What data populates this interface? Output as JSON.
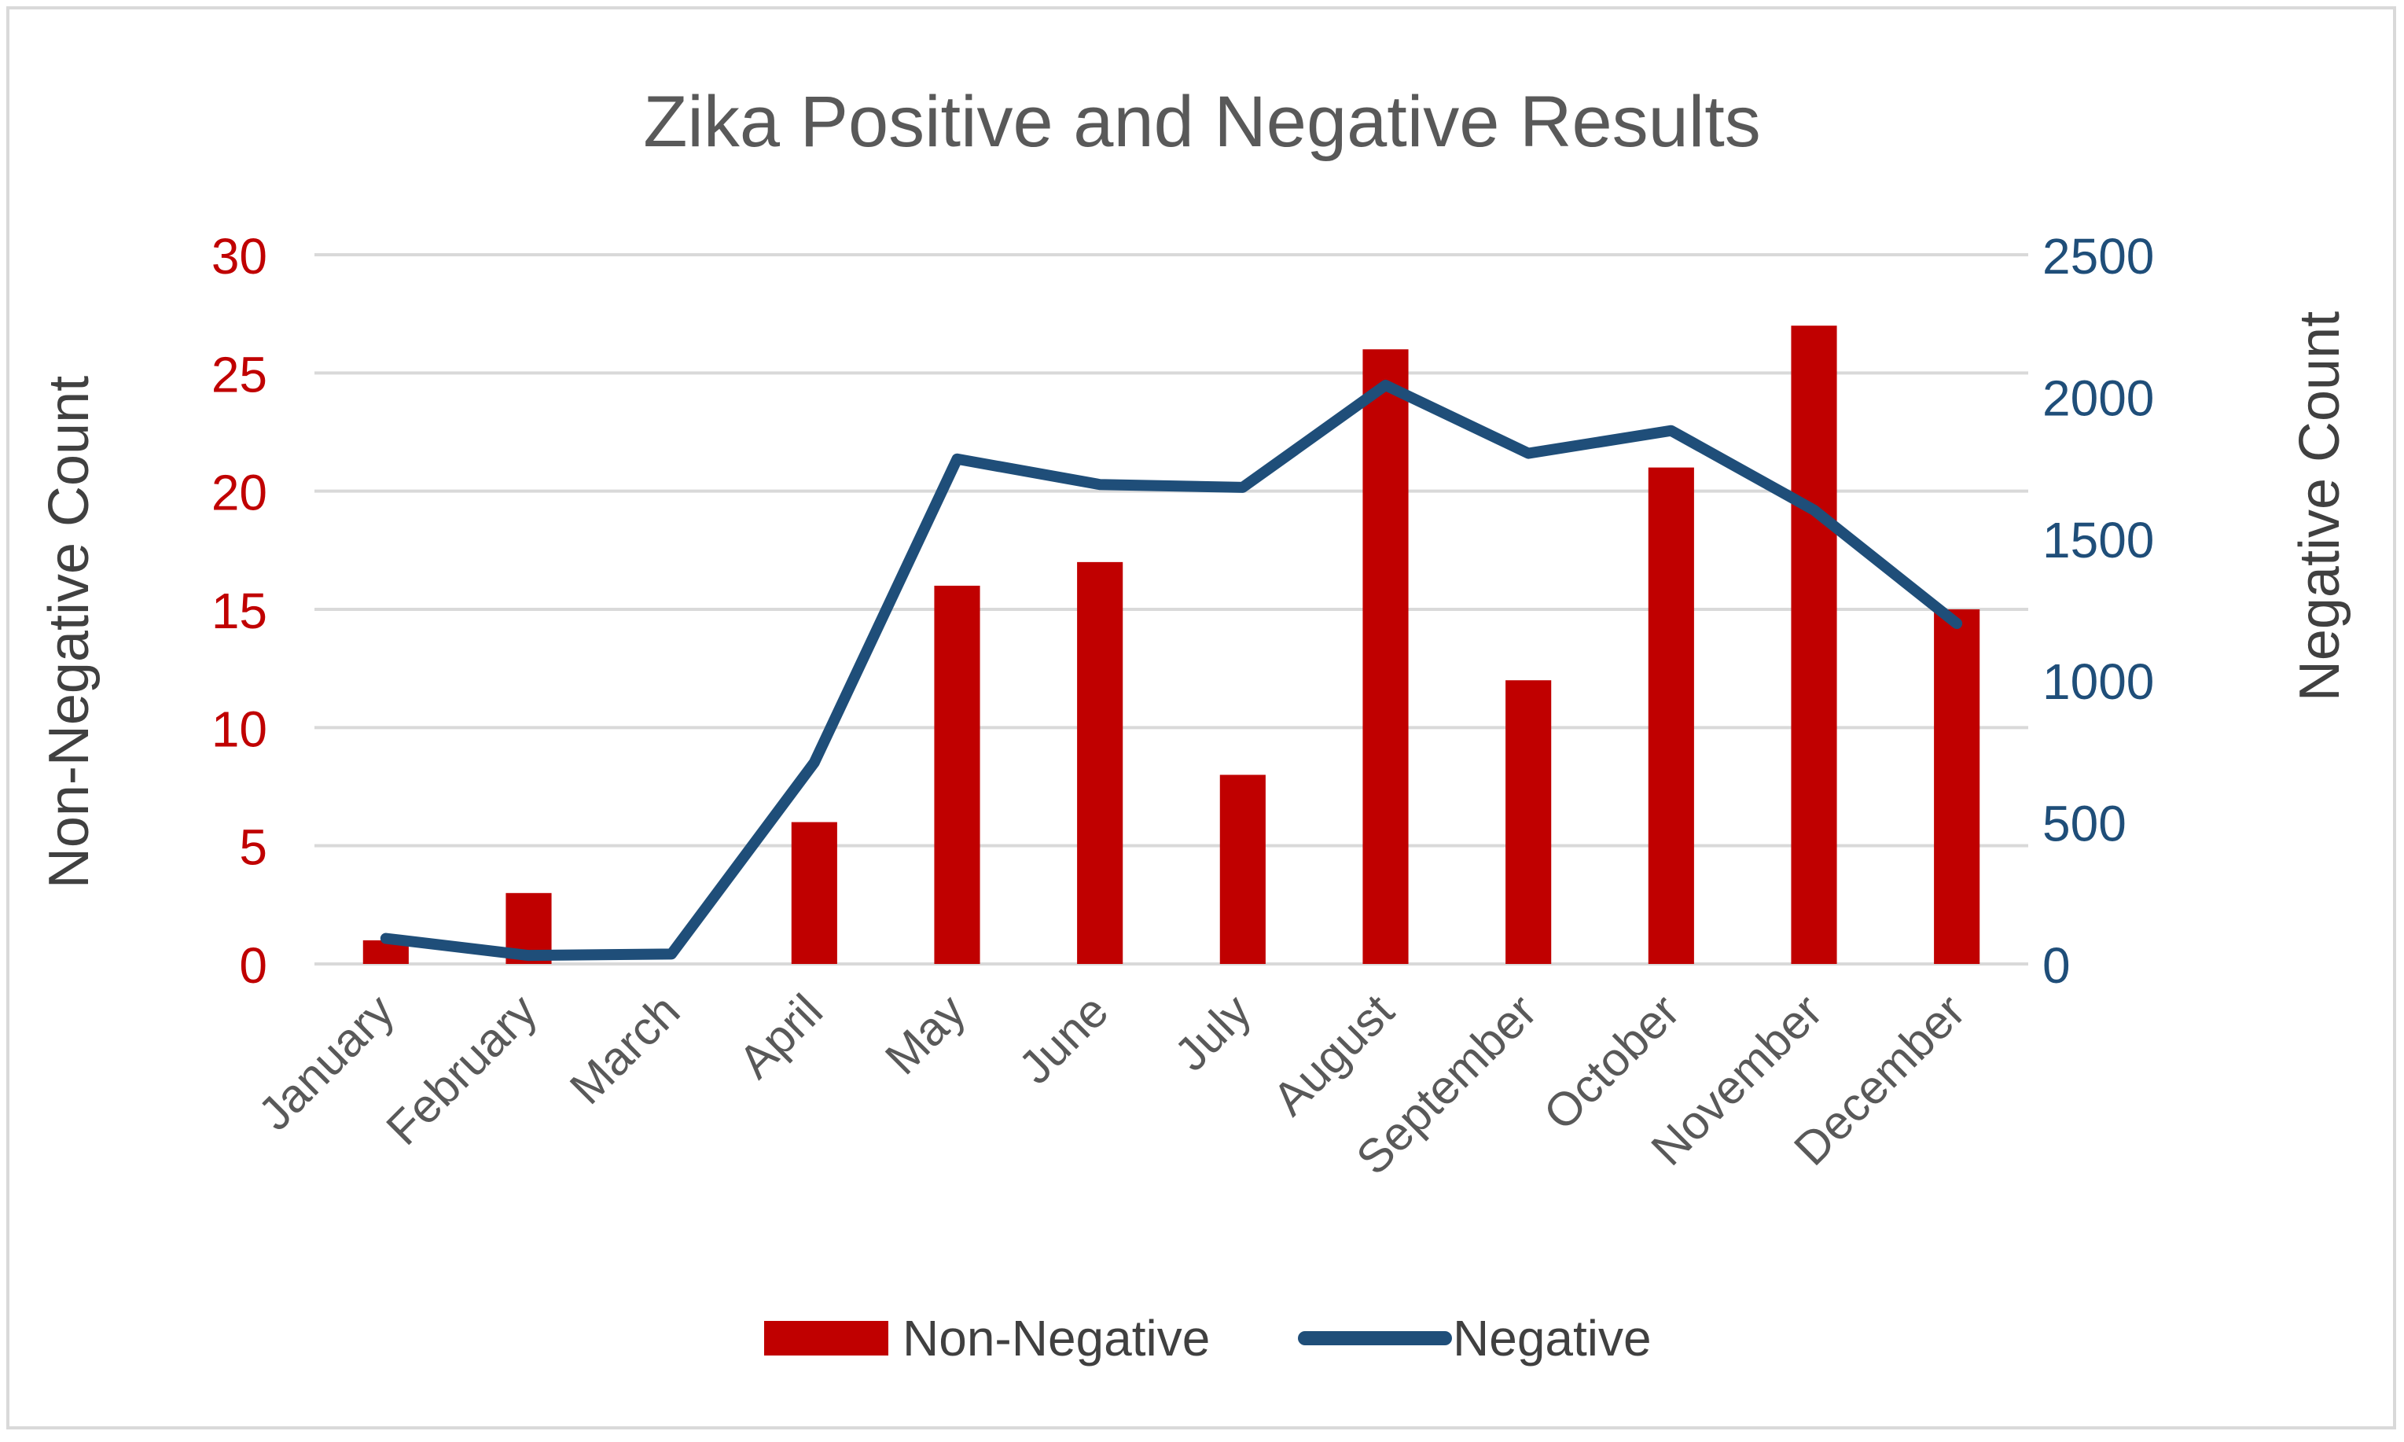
{
  "chart_data": {
    "type": "bar",
    "title": "Zika Positive and Negative Results",
    "xlabel": "",
    "ylabel": "Non-Negative Count",
    "ylabel_right": "Negative Count",
    "categories": [
      "January",
      "February",
      "March",
      "April",
      "May",
      "June",
      "July",
      "August",
      "September",
      "October",
      "November",
      "December"
    ],
    "ylim": [
      0,
      30
    ],
    "y_ticks": [
      0,
      5,
      10,
      15,
      20,
      25,
      30
    ],
    "ylim_right": [
      0,
      2500
    ],
    "y_ticks_right": [
      0,
      500,
      1000,
      1500,
      2000,
      2500
    ],
    "grid": true,
    "legend_position": "bottom",
    "series": [
      {
        "name": "Non-Negative",
        "type": "bar",
        "axis": "left",
        "color": "#C00000",
        "values": [
          1,
          3,
          0,
          6,
          16,
          17,
          8,
          26,
          12,
          21,
          27,
          15
        ]
      },
      {
        "name": "Negative",
        "type": "line",
        "axis": "right",
        "color": "#1F4E79",
        "values": [
          90,
          30,
          35,
          710,
          1780,
          1690,
          1680,
          2040,
          1800,
          1880,
          1600,
          1200
        ]
      }
    ]
  }
}
